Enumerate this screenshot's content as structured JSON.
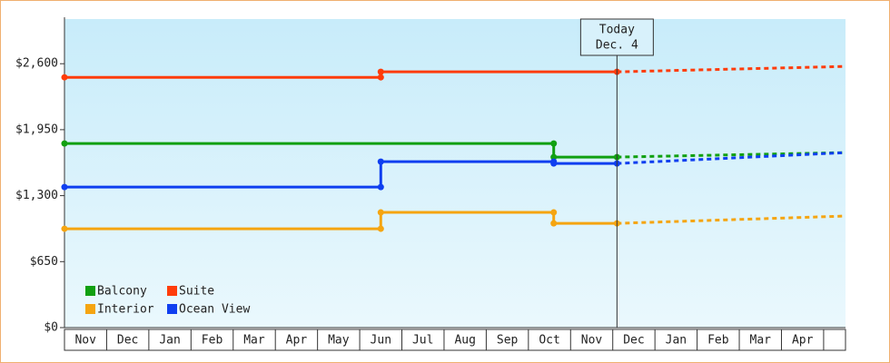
{
  "chart_data": {
    "type": "step-line",
    "categories": [
      "Nov",
      "Dec",
      "Jan",
      "Feb",
      "Mar",
      "Apr",
      "May",
      "Jun",
      "Jul",
      "Aug",
      "Sep",
      "Oct",
      "Nov",
      "Dec",
      "Jan",
      "Feb",
      "Mar",
      "Apr"
    ],
    "xlim": [
      0,
      18.5
    ],
    "ylim": [
      0,
      3040
    ],
    "yticks": [
      {
        "value": 0,
        "label": "$0"
      },
      {
        "value": 650,
        "label": "$650"
      },
      {
        "value": 1300,
        "label": "$1,300"
      },
      {
        "value": 1950,
        "label": "$1,950"
      },
      {
        "value": 2600,
        "label": "$2,600"
      }
    ],
    "annotation": {
      "x": 13.1,
      "lines": [
        "Today",
        "Dec. 4"
      ]
    },
    "series": [
      {
        "name": "Balcony",
        "color": "#11a011",
        "x": [
          0,
          11.6,
          11.6,
          13.1
        ],
        "values": [
          1814,
          1814,
          1680,
          1680
        ],
        "forecast_x": [
          13.1,
          18.5
        ],
        "forecast_values": [
          1680,
          1724
        ]
      },
      {
        "name": "Suite",
        "color": "#ff3c0a",
        "x": [
          0,
          7.5,
          7.5,
          13.1
        ],
        "values": [
          2466,
          2466,
          2520,
          2520
        ],
        "forecast_x": [
          13.1,
          18.5
        ],
        "forecast_values": [
          2520,
          2573
        ]
      },
      {
        "name": "Interior",
        "color": "#f5a511",
        "x": [
          0,
          7.5,
          7.5,
          11.6,
          11.6,
          13.1
        ],
        "values": [
          974,
          974,
          1135,
          1135,
          1027,
          1027
        ],
        "forecast_x": [
          13.1,
          18.5
        ],
        "forecast_values": [
          1027,
          1099
        ]
      },
      {
        "name": "Ocean View",
        "color": "#0f3ff0",
        "x": [
          0,
          7.5,
          7.5,
          11.6,
          11.6,
          13.1
        ],
        "values": [
          1385,
          1385,
          1635,
          1635,
          1617,
          1617
        ],
        "forecast_x": [
          13.1,
          18.5
        ],
        "forecast_values": [
          1617,
          1724
        ]
      }
    ]
  }
}
